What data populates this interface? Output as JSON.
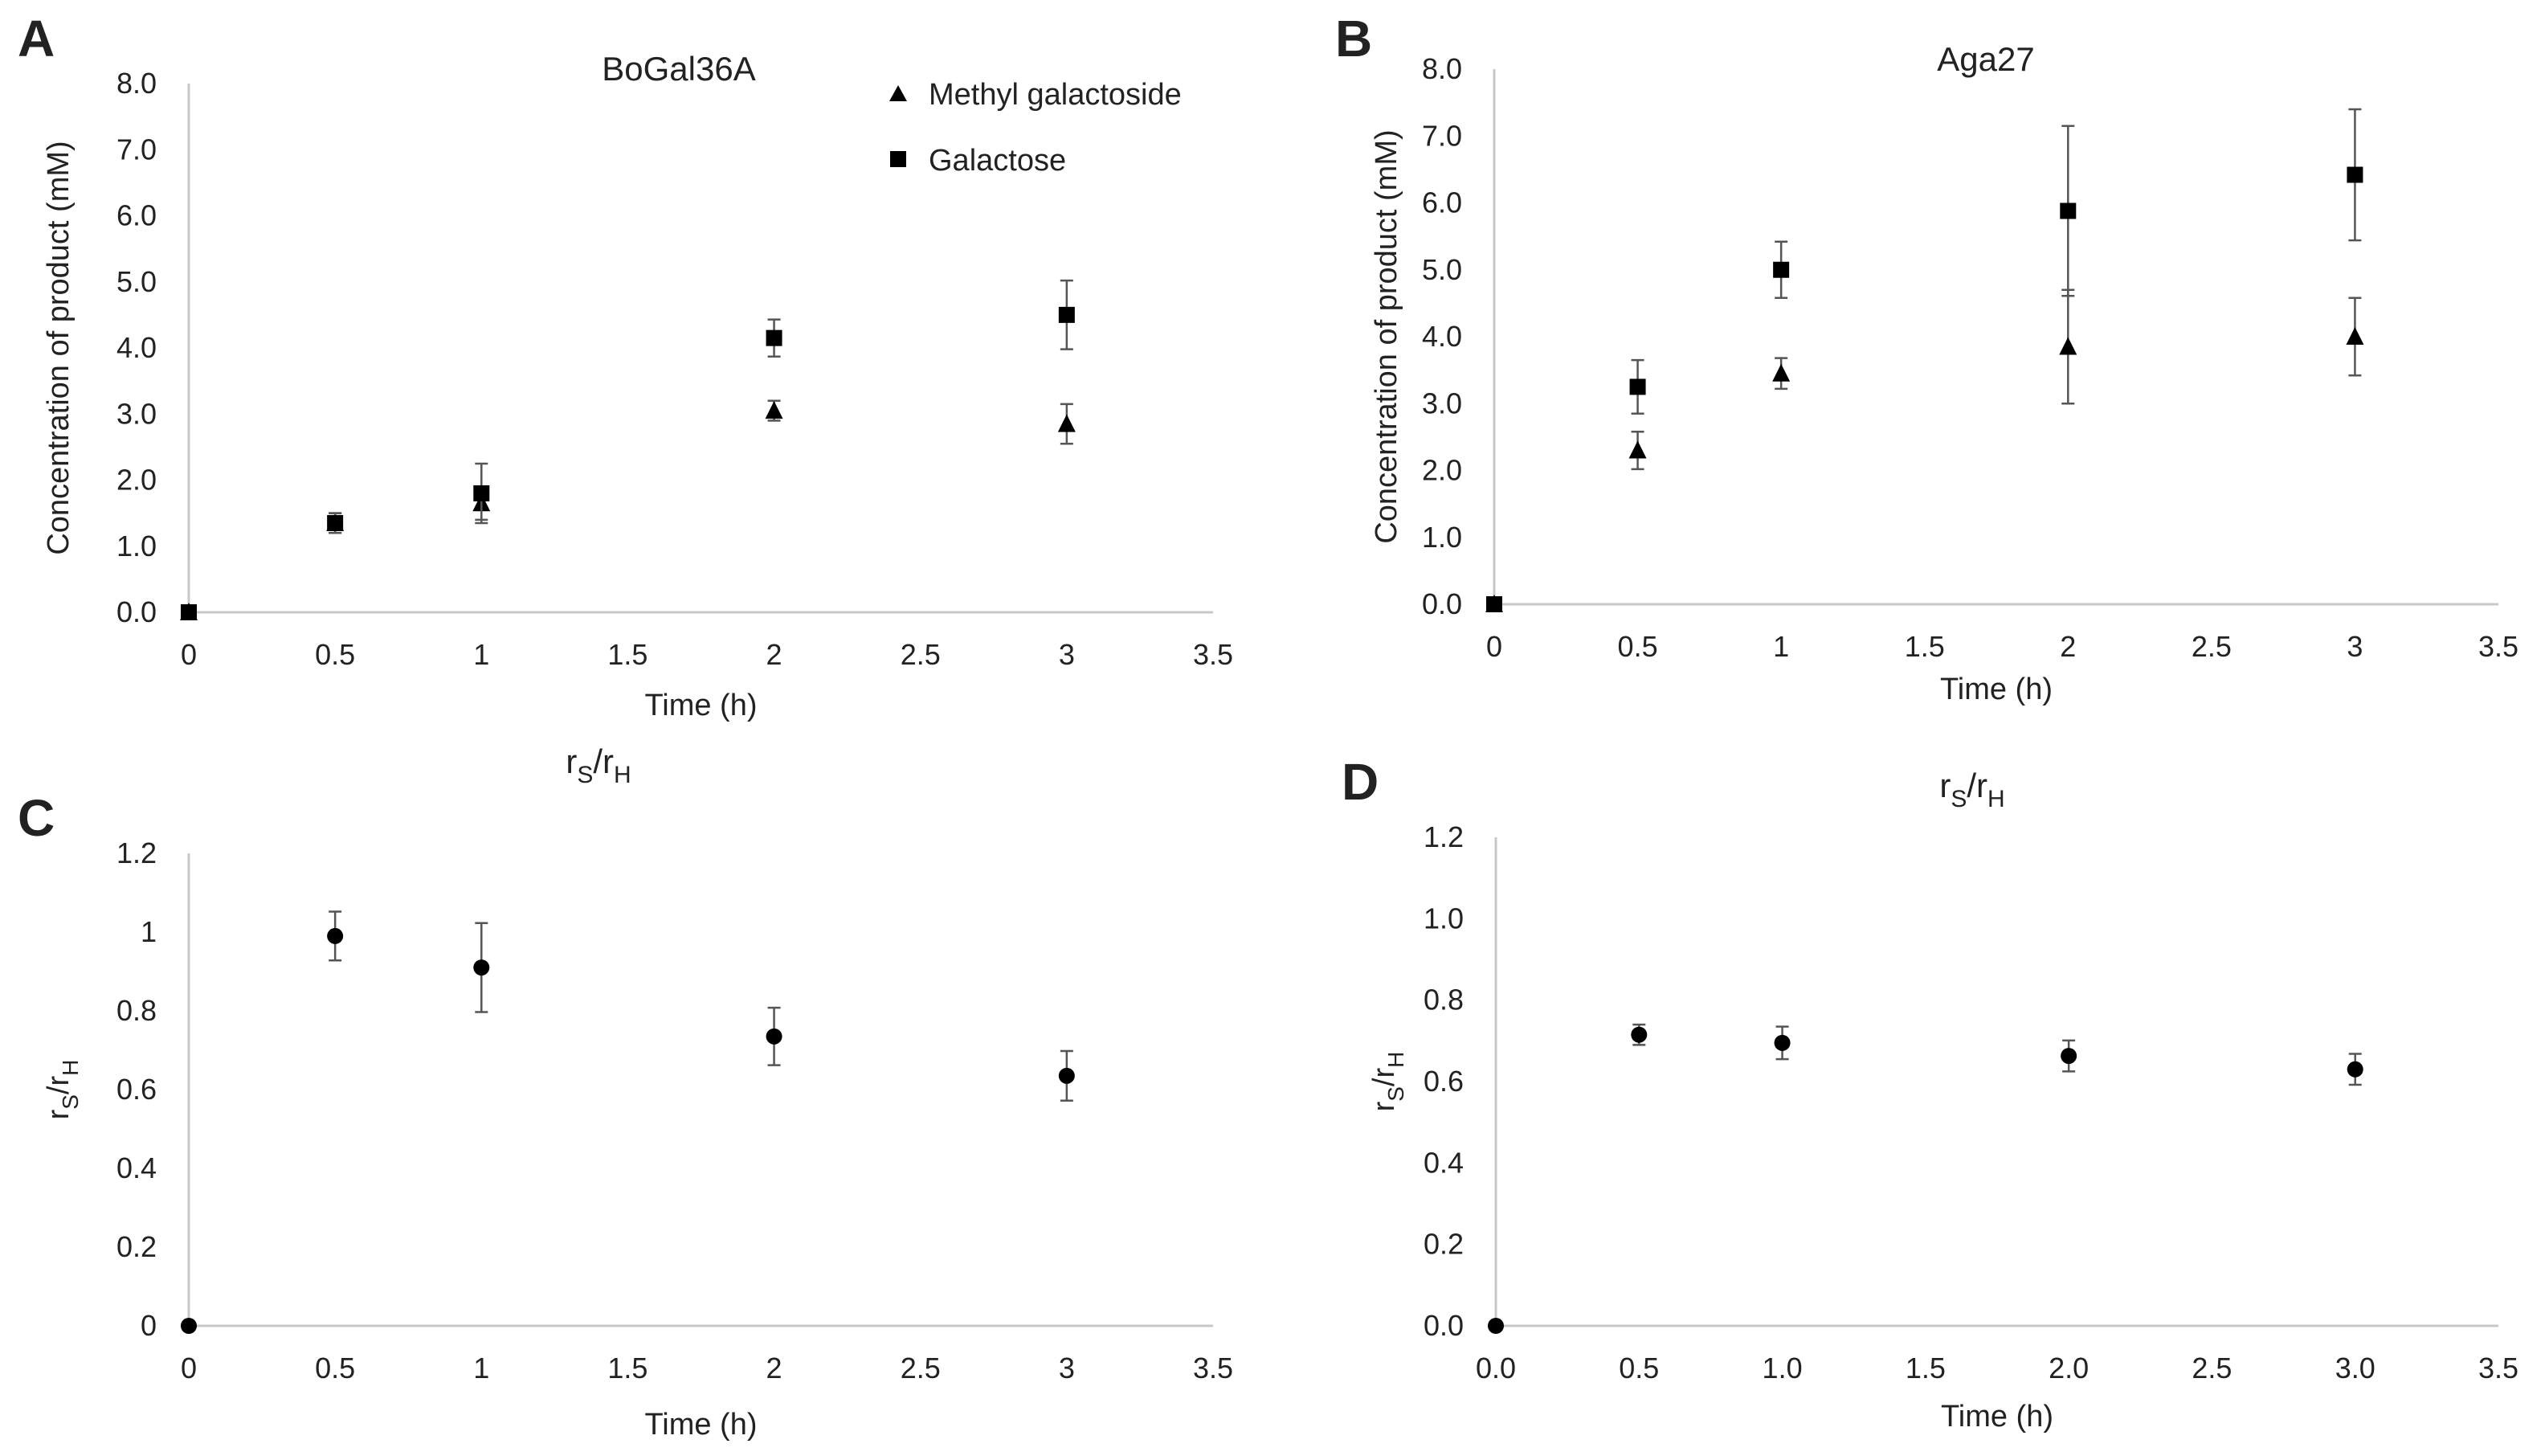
{
  "chart_data": [
    {
      "panel": "A",
      "type": "scatter",
      "title": "BoGal36A",
      "xlabel": "Time (h)",
      "ylabel": "Concentration of product (mM)",
      "xlim": [
        0,
        3.5
      ],
      "ylim": [
        0,
        8
      ],
      "xticks": [
        "0",
        "0.5",
        "1",
        "1.5",
        "2",
        "2.5",
        "3",
        "3.5"
      ],
      "yticks": [
        "0.0",
        "1.0",
        "2.0",
        "3.0",
        "4.0",
        "5.0",
        "6.0",
        "7.0",
        "8.0"
      ],
      "legend": [
        "Methyl galactoside",
        "Galactose"
      ],
      "series": [
        {
          "name": "Methyl galactoside",
          "marker": "triangle",
          "x": [
            0,
            0.5,
            1,
            2,
            3
          ],
          "y": [
            0,
            1.35,
            1.65,
            3.05,
            2.85
          ],
          "err": [
            0,
            0.15,
            0.25,
            0.15,
            0.3
          ]
        },
        {
          "name": "Galactose",
          "marker": "square",
          "x": [
            0,
            0.5,
            1,
            2,
            3
          ],
          "y": [
            0,
            1.35,
            1.8,
            4.15,
            4.5
          ],
          "err": [
            0,
            0.15,
            0.45,
            0.28,
            0.52
          ]
        }
      ]
    },
    {
      "panel": "B",
      "type": "scatter",
      "title": "Aga27",
      "xlabel": "Time (h)",
      "ylabel": "Concentration of product (mM)",
      "xlim": [
        0,
        3.5
      ],
      "ylim": [
        0,
        8
      ],
      "xticks": [
        "0",
        "0.5",
        "1",
        "1.5",
        "2",
        "2.5",
        "3",
        "3.5"
      ],
      "yticks": [
        "0.0",
        "1.0",
        "2.0",
        "3.0",
        "4.0",
        "5.0",
        "6.0",
        "7.0",
        "8.0"
      ],
      "legend": [],
      "series": [
        {
          "name": "Methyl galactoside",
          "marker": "triangle",
          "x": [
            0,
            0.5,
            1,
            2,
            3
          ],
          "y": [
            0,
            2.3,
            3.45,
            3.85,
            4.0
          ],
          "err": [
            0,
            0.28,
            0.23,
            0.85,
            0.58
          ]
        },
        {
          "name": "Galactose",
          "marker": "square",
          "x": [
            0,
            0.5,
            1,
            2,
            3
          ],
          "y": [
            0,
            3.25,
            5.0,
            5.88,
            6.42
          ],
          "err": [
            0,
            0.4,
            0.42,
            1.27,
            0.98
          ]
        }
      ]
    },
    {
      "panel": "C",
      "type": "scatter",
      "title_main": "r",
      "title_sub1": "S",
      "title_mid": "/r",
      "title_sub2": "H",
      "xlabel": "Time (h)",
      "ylabel": "rS/rH",
      "xlim": [
        0,
        3.5
      ],
      "ylim": [
        0,
        1.2
      ],
      "xticks": [
        "0",
        "0.5",
        "1",
        "1.5",
        "2",
        "2.5",
        "3",
        "3.5"
      ],
      "yticks": [
        "0",
        "0.2",
        "0.4",
        "0.6",
        "0.8",
        "1",
        "1.2"
      ],
      "legend": [],
      "series": [
        {
          "name": "rS/rH",
          "marker": "circle",
          "x": [
            0,
            0.5,
            1,
            2,
            3
          ],
          "y": [
            0,
            0.99,
            0.91,
            0.735,
            0.635
          ],
          "err": [
            0,
            0.062,
            0.113,
            0.073,
            0.063
          ]
        }
      ]
    },
    {
      "panel": "D",
      "type": "scatter",
      "title_main": "r",
      "title_sub1": "S",
      "title_mid": "/r",
      "title_sub2": "H",
      "xlabel": "Time (h)",
      "ylabel": "rS/rH",
      "xlim": [
        0,
        3.5
      ],
      "ylim": [
        0,
        1.2
      ],
      "xticks": [
        "0.0",
        "0.5",
        "1.0",
        "1.5",
        "2.0",
        "2.5",
        "3.0",
        "3.5"
      ],
      "yticks": [
        "0.0",
        "0.2",
        "0.4",
        "0.6",
        "0.8",
        "1.0",
        "1.2"
      ],
      "legend": [],
      "series": [
        {
          "name": "rS/rH",
          "marker": "circle",
          "x": [
            0,
            0.5,
            1,
            2,
            3
          ],
          "y": [
            0,
            0.715,
            0.695,
            0.663,
            0.63
          ],
          "err": [
            0,
            0.025,
            0.04,
            0.038,
            0.038
          ]
        }
      ]
    }
  ]
}
